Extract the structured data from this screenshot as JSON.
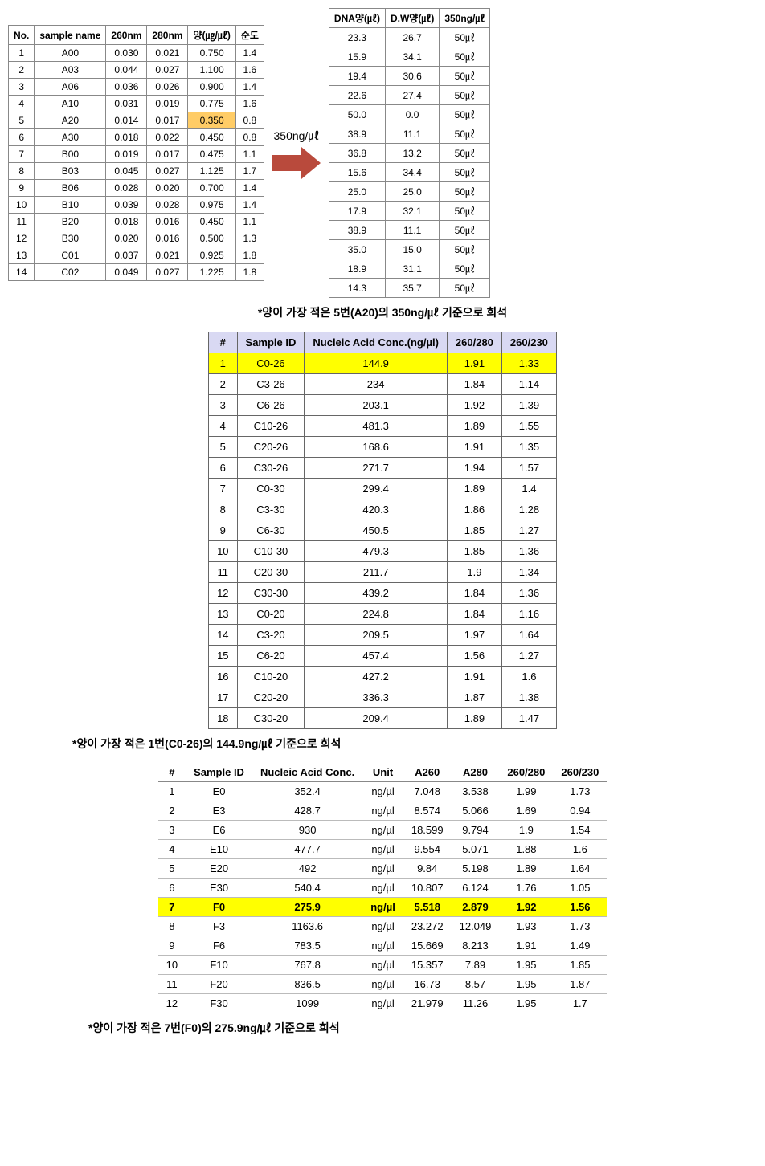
{
  "table1": {
    "columns": [
      "No.",
      "sample name",
      "260nm",
      "280nm",
      "양(㎍/㎕)",
      "순도"
    ],
    "rows": [
      [
        "1",
        "A00",
        "0.030",
        "0.021",
        "0.750",
        "1.4"
      ],
      [
        "2",
        "A03",
        "0.044",
        "0.027",
        "1.100",
        "1.6"
      ],
      [
        "3",
        "A06",
        "0.036",
        "0.026",
        "0.900",
        "1.4"
      ],
      [
        "4",
        "A10",
        "0.031",
        "0.019",
        "0.775",
        "1.6"
      ],
      [
        "5",
        "A20",
        "0.014",
        "0.017",
        "0.350",
        "0.8"
      ],
      [
        "6",
        "A30",
        "0.018",
        "0.022",
        "0.450",
        "0.8"
      ],
      [
        "7",
        "B00",
        "0.019",
        "0.017",
        "0.475",
        "1.1"
      ],
      [
        "8",
        "B03",
        "0.045",
        "0.027",
        "1.125",
        "1.7"
      ],
      [
        "9",
        "B06",
        "0.028",
        "0.020",
        "0.700",
        "1.4"
      ],
      [
        "10",
        "B10",
        "0.039",
        "0.028",
        "0.975",
        "1.4"
      ],
      [
        "11",
        "B20",
        "0.018",
        "0.016",
        "0.450",
        "1.1"
      ],
      [
        "12",
        "B30",
        "0.020",
        "0.016",
        "0.500",
        "1.3"
      ],
      [
        "13",
        "C01",
        "0.037",
        "0.021",
        "0.925",
        "1.8"
      ],
      [
        "14",
        "C02",
        "0.049",
        "0.027",
        "1.225",
        "1.8"
      ]
    ],
    "highlight_cell": {
      "row": 4,
      "col": 4,
      "color": "#ffcc66"
    }
  },
  "arrow": {
    "label": "350ng/㎕",
    "color": "#b94a3c"
  },
  "tableRight": {
    "columns": [
      "DNA양(㎕)",
      "D.W양(㎕)",
      "350ng/㎕"
    ],
    "rows": [
      [
        "23.3",
        "26.7",
        "50㎕"
      ],
      [
        "15.9",
        "34.1",
        "50㎕"
      ],
      [
        "19.4",
        "30.6",
        "50㎕"
      ],
      [
        "22.6",
        "27.4",
        "50㎕"
      ],
      [
        "50.0",
        "0.0",
        "50㎕"
      ],
      [
        "38.9",
        "11.1",
        "50㎕"
      ],
      [
        "36.8",
        "13.2",
        "50㎕"
      ],
      [
        "15.6",
        "34.4",
        "50㎕"
      ],
      [
        "25.0",
        "25.0",
        "50㎕"
      ],
      [
        "17.9",
        "32.1",
        "50㎕"
      ],
      [
        "38.9",
        "11.1",
        "50㎕"
      ],
      [
        "35.0",
        "15.0",
        "50㎕"
      ],
      [
        "18.9",
        "31.1",
        "50㎕"
      ],
      [
        "14.3",
        "35.7",
        "50㎕"
      ]
    ]
  },
  "caption1": "*양이 가장 적은 5번(A20)의 350ng/㎕ 기준으로 희석",
  "table2": {
    "header_bg": "#d9d9f3",
    "columns": [
      "#",
      "Sample ID",
      "Nucleic Acid Conc.(ng/µl)",
      "260/280",
      "260/230"
    ],
    "rows": [
      [
        "1",
        "C0-26",
        "144.9",
        "1.91",
        "1.33"
      ],
      [
        "2",
        "C3-26",
        "234",
        "1.84",
        "1.14"
      ],
      [
        "3",
        "C6-26",
        "203.1",
        "1.92",
        "1.39"
      ],
      [
        "4",
        "C10-26",
        "481.3",
        "1.89",
        "1.55"
      ],
      [
        "5",
        "C20-26",
        "168.6",
        "1.91",
        "1.35"
      ],
      [
        "6",
        "C30-26",
        "271.7",
        "1.94",
        "1.57"
      ],
      [
        "7",
        "C0-30",
        "299.4",
        "1.89",
        "1.4"
      ],
      [
        "8",
        "C3-30",
        "420.3",
        "1.86",
        "1.28"
      ],
      [
        "9",
        "C6-30",
        "450.5",
        "1.85",
        "1.27"
      ],
      [
        "10",
        "C10-30",
        "479.3",
        "1.85",
        "1.36"
      ],
      [
        "11",
        "C20-30",
        "211.7",
        "1.9",
        "1.34"
      ],
      [
        "12",
        "C30-30",
        "439.2",
        "1.84",
        "1.36"
      ],
      [
        "13",
        "C0-20",
        "224.8",
        "1.84",
        "1.16"
      ],
      [
        "14",
        "C3-20",
        "209.5",
        "1.97",
        "1.64"
      ],
      [
        "15",
        "C6-20",
        "457.4",
        "1.56",
        "1.27"
      ],
      [
        "16",
        "C10-20",
        "427.2",
        "1.91",
        "1.6"
      ],
      [
        "17",
        "C20-20",
        "336.3",
        "1.87",
        "1.38"
      ],
      [
        "18",
        "C30-20",
        "209.4",
        "1.89",
        "1.47"
      ]
    ],
    "highlight_row": 0,
    "highlight_color": "#ffff00"
  },
  "caption2": "*양이 가장 적은 1번(C0-26)의 144.9ng/㎕ 기준으로 희석",
  "table3": {
    "columns": [
      "#",
      "Sample ID",
      "Nucleic Acid Conc.",
      "Unit",
      "A260",
      "A280",
      "260/280",
      "260/230"
    ],
    "rows": [
      [
        "1",
        "E0",
        "352.4",
        "ng/µl",
        "7.048",
        "3.538",
        "1.99",
        "1.73"
      ],
      [
        "2",
        "E3",
        "428.7",
        "ng/µl",
        "8.574",
        "5.066",
        "1.69",
        "0.94"
      ],
      [
        "3",
        "E6",
        "930",
        "ng/µl",
        "18.599",
        "9.794",
        "1.9",
        "1.54"
      ],
      [
        "4",
        "E10",
        "477.7",
        "ng/µl",
        "9.554",
        "5.071",
        "1.88",
        "1.6"
      ],
      [
        "5",
        "E20",
        "492",
        "ng/µl",
        "9.84",
        "5.198",
        "1.89",
        "1.64"
      ],
      [
        "6",
        "E30",
        "540.4",
        "ng/µl",
        "10.807",
        "6.124",
        "1.76",
        "1.05"
      ],
      [
        "7",
        "F0",
        "275.9",
        "ng/µl",
        "5.518",
        "2.879",
        "1.92",
        "1.56"
      ],
      [
        "8",
        "F3",
        "1163.6",
        "ng/µl",
        "23.272",
        "12.049",
        "1.93",
        "1.73"
      ],
      [
        "9",
        "F6",
        "783.5",
        "ng/µl",
        "15.669",
        "8.213",
        "1.91",
        "1.49"
      ],
      [
        "10",
        "F10",
        "767.8",
        "ng/µl",
        "15.357",
        "7.89",
        "1.95",
        "1.85"
      ],
      [
        "11",
        "F20",
        "836.5",
        "ng/µl",
        "16.73",
        "8.57",
        "1.95",
        "1.87"
      ],
      [
        "12",
        "F30",
        "1099",
        "ng/µl",
        "21.979",
        "11.26",
        "1.95",
        "1.7"
      ]
    ],
    "highlight_row": 6,
    "highlight_color": "#ffff00"
  },
  "caption3": "*양이 가장 적은 7번(F0)의 275.9ng/㎕ 기준으로 희석"
}
